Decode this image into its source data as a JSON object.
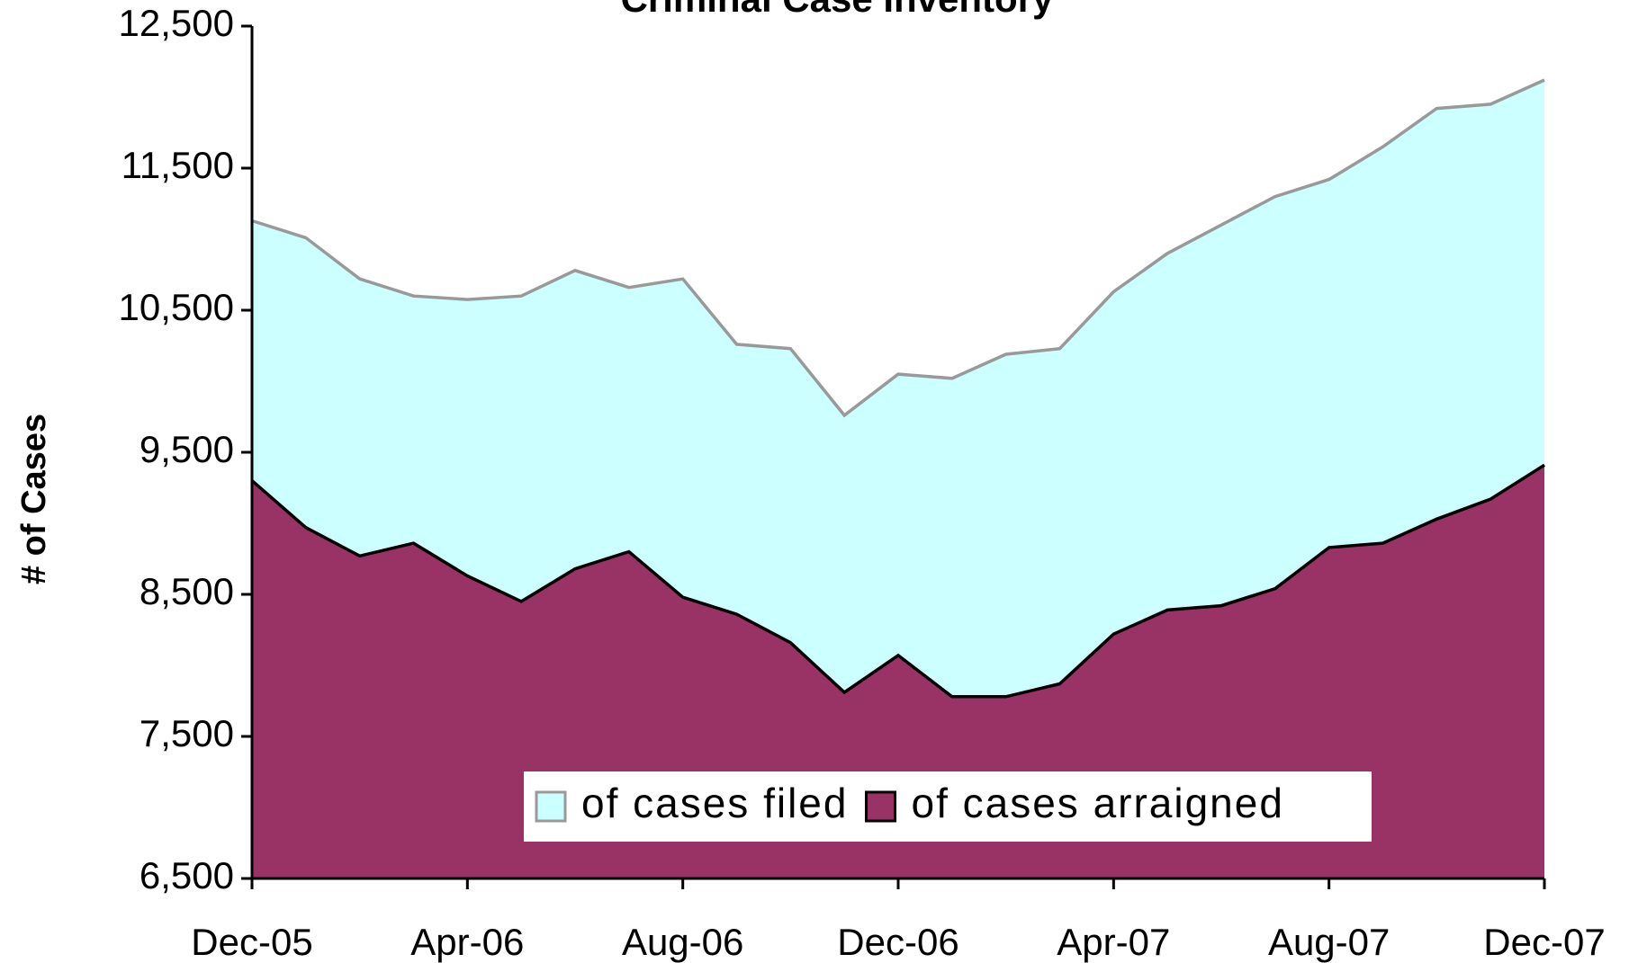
{
  "chart_data": {
    "type": "area",
    "title": "Criminal Case Inventory",
    "y_label": "# of Cases",
    "categories": [
      "Dec-05",
      null,
      null,
      null,
      "Apr-06",
      null,
      null,
      null,
      "Aug-06",
      null,
      null,
      null,
      "Dec-06",
      null,
      null,
      null,
      "Apr-07",
      null,
      null,
      null,
      "Aug-07",
      null,
      null,
      null,
      "Dec-07"
    ],
    "series": [
      {
        "name": "of cases filed",
        "color": "#ccffff",
        "line_color": "#999999",
        "values": [
          11130,
          11010,
          10720,
          10600,
          10575,
          10600,
          10780,
          10660,
          10720,
          10260,
          10230,
          9760,
          10050,
          10020,
          10190,
          10230,
          10630,
          10900,
          11100,
          11300,
          11420,
          11650,
          11920,
          11950,
          12120
        ]
      },
      {
        "name": "of cases arraigned",
        "color": "#993366",
        "line_color": "#000000",
        "values": [
          9300,
          8970,
          8770,
          8860,
          8630,
          8450,
          8680,
          8800,
          8480,
          8360,
          8160,
          7810,
          8070,
          7780,
          7780,
          7870,
          8220,
          8390,
          8420,
          8540,
          8830,
          8860,
          9030,
          9170,
          9410
        ]
      }
    ],
    "ylim": [
      6500,
      12500
    ],
    "yticks": [
      {
        "value": 6500,
        "label": "6,500"
      },
      {
        "value": 7500,
        "label": "7,500"
      },
      {
        "value": 8500,
        "label": "8,500"
      },
      {
        "value": 9500,
        "label": "9,500"
      },
      {
        "value": 10500,
        "label": "10,500"
      },
      {
        "value": 11500,
        "label": "11,500"
      },
      {
        "value": 12500,
        "label": "12,500"
      }
    ],
    "grid": false,
    "legend": "bottom"
  }
}
